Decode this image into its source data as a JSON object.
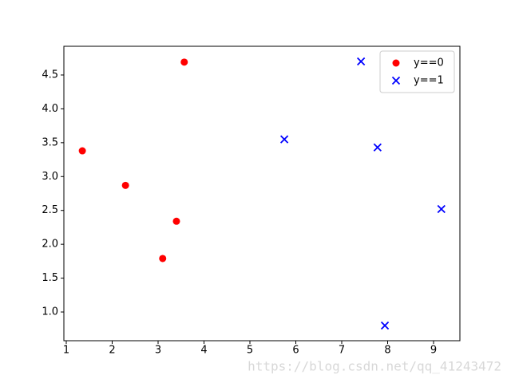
{
  "chart_data": {
    "type": "scatter",
    "series": [
      {
        "name": "y==0",
        "color": "#ff0000",
        "marker": "o",
        "x": [
          1.35,
          2.29,
          3.4,
          3.1,
          3.57
        ],
        "y": [
          3.38,
          2.87,
          2.34,
          1.79,
          4.69
        ]
      },
      {
        "name": "y==1",
        "color": "#0000ff",
        "marker": "x",
        "x": [
          7.42,
          5.75,
          7.78,
          9.17,
          7.94
        ],
        "y": [
          4.7,
          3.55,
          3.43,
          2.52,
          0.8
        ]
      }
    ],
    "xlim": [
      0.948,
      9.574
    ],
    "ylim": [
      0.576,
      4.924
    ],
    "xticks": [
      1,
      2,
      3,
      4,
      5,
      6,
      7,
      8,
      9
    ],
    "yticks": [
      {
        "value": 1,
        "label": "1.0"
      },
      {
        "value": 1.5,
        "label": "1.5"
      },
      {
        "value": 2,
        "label": "2.0"
      },
      {
        "value": 2.5,
        "label": "2.5"
      },
      {
        "value": 3,
        "label": "3.0"
      },
      {
        "value": 3.5,
        "label": "3.5"
      },
      {
        "value": 4,
        "label": "4.0"
      },
      {
        "value": 4.5,
        "label": "4.5"
      }
    ],
    "legend": "upper right",
    "grid": false
  },
  "watermark": "https://blog.csdn.net/qq_41243472"
}
